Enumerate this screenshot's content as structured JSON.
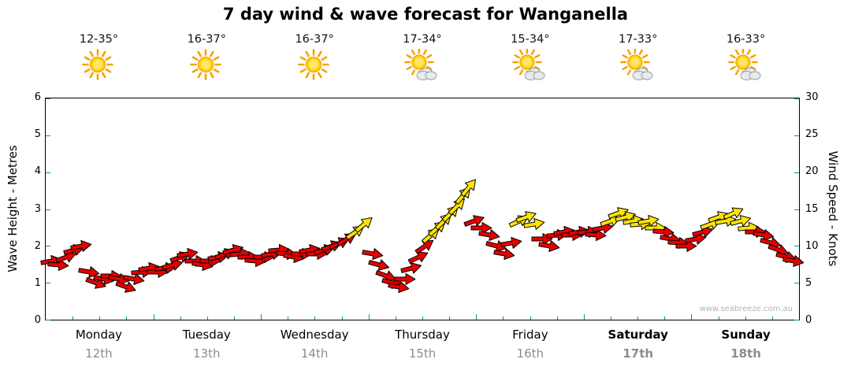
{
  "watermark": "www.seabreeze.com.au",
  "colors": {
    "arrow_red": "#e60000",
    "arrow_yellow": "#ffe400",
    "arrow_outline": "#000000",
    "tick": "#009999",
    "date_gray": "#8c8c8c"
  },
  "chart_data": {
    "type": "scatter",
    "subtype": "wind-arrow-forecast",
    "title": "7 day wind & wave forecast for Wanganella",
    "ylabel_left": "Wave Height - Metres",
    "ylabel_right": "Wind Speed - Knots",
    "y_left": {
      "range": [
        0,
        6
      ],
      "ticks": [
        0,
        1,
        2,
        3,
        4,
        5,
        6
      ]
    },
    "y_right": {
      "range": [
        0,
        30
      ],
      "ticks": [
        0,
        5,
        10,
        15,
        20,
        25,
        30
      ]
    },
    "x_range_days": [
      0,
      7
    ],
    "days": [
      {
        "label": "Monday",
        "date": "12th",
        "temp": "12-35°",
        "icon": "sunny",
        "emphasis": false
      },
      {
        "label": "Tuesday",
        "date": "13th",
        "temp": "16-37°",
        "icon": "sunny",
        "emphasis": false
      },
      {
        "label": "Wednesday",
        "date": "14th",
        "temp": "16-37°",
        "icon": "sunny",
        "emphasis": false
      },
      {
        "label": "Thursday",
        "date": "15th",
        "temp": "17-34°",
        "icon": "partly",
        "emphasis": false
      },
      {
        "label": "Friday",
        "date": "16th",
        "temp": "15-34°",
        "icon": "partly",
        "emphasis": false
      },
      {
        "label": "Saturday",
        "date": "17th",
        "temp": "17-33°",
        "icon": "partly",
        "emphasis": true
      },
      {
        "label": "Sunday",
        "date": "18th",
        "temp": "16-33°",
        "icon": "partly",
        "emphasis": true
      }
    ],
    "arrow_format": [
      "time_days",
      "wind_speed_knots",
      "rotation_deg",
      "color"
    ],
    "arrows": [
      [
        0.05,
        8.0,
        -10,
        "red"
      ],
      [
        0.12,
        7.5,
        5,
        "red"
      ],
      [
        0.19,
        8.5,
        -20,
        "red"
      ],
      [
        0.26,
        9.5,
        -15,
        "red"
      ],
      [
        0.33,
        10.0,
        -10,
        "red"
      ],
      [
        0.4,
        6.5,
        10,
        "red"
      ],
      [
        0.47,
        5.0,
        20,
        "red"
      ],
      [
        0.54,
        5.5,
        10,
        "red"
      ],
      [
        0.61,
        6.0,
        0,
        "red"
      ],
      [
        0.68,
        5.5,
        10,
        "red"
      ],
      [
        0.75,
        4.5,
        20,
        "red"
      ],
      [
        0.82,
        5.5,
        10,
        "red"
      ],
      [
        0.89,
        6.5,
        -5,
        "red"
      ],
      [
        0.96,
        7.0,
        -10,
        "red"
      ],
      [
        1.04,
        6.5,
        0,
        "red"
      ],
      [
        1.11,
        7.0,
        -5,
        "red"
      ],
      [
        1.18,
        7.5,
        -15,
        "red"
      ],
      [
        1.25,
        8.5,
        -20,
        "red"
      ],
      [
        1.32,
        9.0,
        -10,
        "red"
      ],
      [
        1.39,
        8.0,
        0,
        "red"
      ],
      [
        1.46,
        7.5,
        10,
        "red"
      ],
      [
        1.53,
        8.0,
        0,
        "red"
      ],
      [
        1.6,
        8.5,
        -10,
        "red"
      ],
      [
        1.67,
        9.0,
        -20,
        "red"
      ],
      [
        1.74,
        9.5,
        -15,
        "red"
      ],
      [
        1.81,
        9.0,
        -5,
        "red"
      ],
      [
        1.88,
        8.5,
        0,
        "red"
      ],
      [
        1.95,
        8.0,
        5,
        "red"
      ],
      [
        2.03,
        8.5,
        0,
        "red"
      ],
      [
        2.1,
        9.0,
        -10,
        "red"
      ],
      [
        2.17,
        9.5,
        -5,
        "red"
      ],
      [
        2.24,
        9.0,
        5,
        "red"
      ],
      [
        2.31,
        8.5,
        10,
        "red"
      ],
      [
        2.38,
        9.0,
        0,
        "red"
      ],
      [
        2.45,
        9.5,
        -10,
        "red"
      ],
      [
        2.52,
        9.0,
        0,
        "red"
      ],
      [
        2.59,
        9.5,
        -15,
        "red"
      ],
      [
        2.66,
        10.0,
        -20,
        "red"
      ],
      [
        2.73,
        10.5,
        -25,
        "red"
      ],
      [
        2.8,
        11.0,
        -30,
        "red"
      ],
      [
        2.88,
        12.0,
        -35,
        "yellow"
      ],
      [
        2.96,
        13.0,
        -40,
        "yellow"
      ],
      [
        3.04,
        9.0,
        10,
        "red"
      ],
      [
        3.1,
        7.5,
        15,
        "red"
      ],
      [
        3.16,
        6.0,
        20,
        "red"
      ],
      [
        3.22,
        5.0,
        15,
        "red"
      ],
      [
        3.28,
        4.5,
        10,
        "red"
      ],
      [
        3.34,
        5.5,
        0,
        "red"
      ],
      [
        3.4,
        7.0,
        -15,
        "red"
      ],
      [
        3.46,
        8.5,
        -25,
        "red"
      ],
      [
        3.52,
        10.0,
        -35,
        "red"
      ],
      [
        3.58,
        11.5,
        -40,
        "yellow"
      ],
      [
        3.64,
        12.5,
        -40,
        "yellow"
      ],
      [
        3.7,
        13.5,
        -45,
        "yellow"
      ],
      [
        3.76,
        14.5,
        -45,
        "yellow"
      ],
      [
        3.82,
        15.5,
        -45,
        "yellow"
      ],
      [
        3.88,
        17.0,
        -50,
        "yellow"
      ],
      [
        3.93,
        18.0,
        -50,
        "yellow"
      ],
      [
        3.98,
        13.5,
        -20,
        "red"
      ],
      [
        4.05,
        12.5,
        0,
        "red"
      ],
      [
        4.12,
        11.5,
        10,
        "red"
      ],
      [
        4.19,
        10.0,
        15,
        "red"
      ],
      [
        4.26,
        9.0,
        10,
        "red"
      ],
      [
        4.33,
        10.5,
        -10,
        "red"
      ],
      [
        4.4,
        13.5,
        -25,
        "yellow"
      ],
      [
        4.47,
        14.0,
        -20,
        "yellow"
      ],
      [
        4.54,
        13.0,
        -10,
        "yellow"
      ],
      [
        4.61,
        11.0,
        0,
        "red"
      ],
      [
        4.68,
        10.0,
        10,
        "red"
      ],
      [
        4.75,
        11.5,
        -5,
        "red"
      ],
      [
        4.82,
        12.0,
        -10,
        "red"
      ],
      [
        4.89,
        11.5,
        0,
        "red"
      ],
      [
        4.96,
        12.0,
        -10,
        "red"
      ],
      [
        5.04,
        12.0,
        -5,
        "red"
      ],
      [
        5.11,
        11.5,
        5,
        "red"
      ],
      [
        5.18,
        12.5,
        -10,
        "red"
      ],
      [
        5.25,
        13.5,
        -20,
        "yellow"
      ],
      [
        5.32,
        14.5,
        -20,
        "yellow"
      ],
      [
        5.39,
        14.0,
        -15,
        "yellow"
      ],
      [
        5.46,
        13.5,
        -10,
        "yellow"
      ],
      [
        5.53,
        13.0,
        -5,
        "yellow"
      ],
      [
        5.6,
        13.5,
        -10,
        "yellow"
      ],
      [
        5.67,
        12.5,
        0,
        "yellow"
      ],
      [
        5.74,
        12.0,
        5,
        "red"
      ],
      [
        5.81,
        11.0,
        10,
        "red"
      ],
      [
        5.88,
        10.5,
        5,
        "red"
      ],
      [
        5.95,
        10.0,
        0,
        "red"
      ],
      [
        6.04,
        11.0,
        -10,
        "red"
      ],
      [
        6.11,
        12.0,
        -15,
        "red"
      ],
      [
        6.18,
        13.0,
        -20,
        "yellow"
      ],
      [
        6.25,
        14.0,
        -20,
        "yellow"
      ],
      [
        6.32,
        13.5,
        -10,
        "yellow"
      ],
      [
        6.39,
        14.5,
        -25,
        "yellow"
      ],
      [
        6.46,
        13.5,
        -15,
        "yellow"
      ],
      [
        6.53,
        12.5,
        -5,
        "yellow"
      ],
      [
        6.6,
        12.0,
        0,
        "red"
      ],
      [
        6.67,
        11.5,
        10,
        "red"
      ],
      [
        6.74,
        10.5,
        15,
        "red"
      ],
      [
        6.81,
        9.5,
        20,
        "red"
      ],
      [
        6.88,
        8.5,
        15,
        "red"
      ],
      [
        6.95,
        8.0,
        10,
        "red"
      ]
    ]
  }
}
